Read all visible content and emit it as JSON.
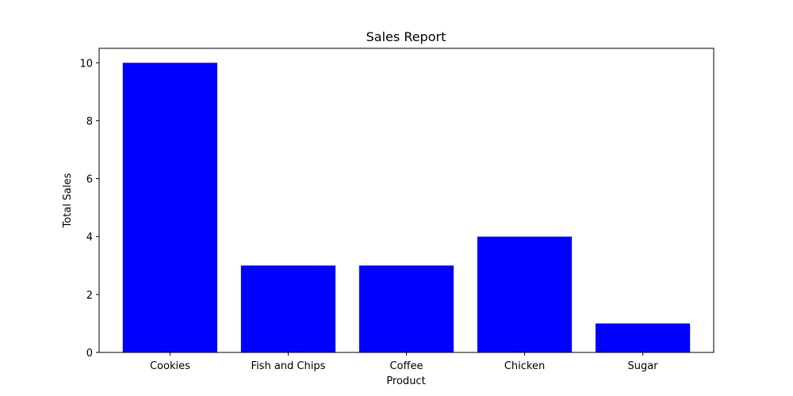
{
  "chart_data": {
    "type": "bar",
    "title": "Sales Report",
    "xlabel": "Product",
    "ylabel": "Total Sales",
    "categories": [
      "Cookies",
      "Fish and Chips",
      "Coffee",
      "Chicken",
      "Sugar"
    ],
    "values": [
      10,
      3,
      3,
      4,
      1
    ],
    "ylim": [
      0,
      10.5
    ],
    "yticks": [
      0,
      2,
      4,
      6,
      8,
      10
    ],
    "bar_color": "#0000ff",
    "grid": false,
    "legend": false
  }
}
